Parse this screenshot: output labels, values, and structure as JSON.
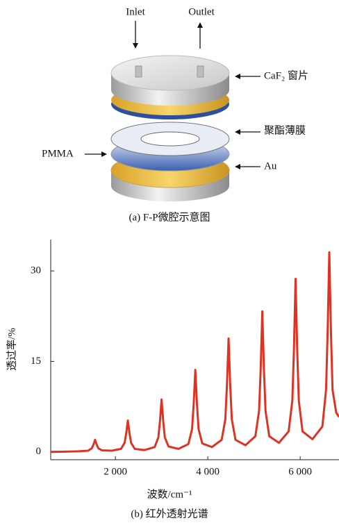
{
  "diagram": {
    "inlet": "Inlet",
    "outlet": "Outlet",
    "caf2_label": "CaF₂ 窗片",
    "film_label": "聚酯薄膜",
    "pmma_label": "PMMA",
    "au_label": "Au",
    "caption": "(a) F-P微腔示意图"
  },
  "chart_data": {
    "type": "line",
    "caption": "(b) 红外透射光谱",
    "x_label": "波数/cm⁻¹",
    "y_label": "透过率/%",
    "color": "#e03222",
    "xlim": [
      600,
      6840
    ],
    "ylim": [
      -1.3,
      35.2
    ],
    "xticks": [
      {
        "value": 2000,
        "label": "2 000"
      },
      {
        "value": 4000,
        "label": "4 000"
      },
      {
        "value": 6000,
        "label": "6 000"
      }
    ],
    "yticks": [
      0,
      15,
      30
    ],
    "x": [
      600,
      1000,
      1200,
      1410,
      1490,
      1525,
      1560,
      1595,
      1630,
      1710,
      1920,
      2120,
      2200,
      2235,
      2270,
      2305,
      2340,
      2420,
      2630,
      2850,
      2930,
      2965,
      3000,
      3035,
      3070,
      3150,
      3365,
      3580,
      3660,
      3695,
      3730,
      3765,
      3800,
      3880,
      4090,
      4300,
      4380,
      4415,
      4450,
      4485,
      4520,
      4600,
      4815,
      5030,
      5110,
      5145,
      5180,
      5215,
      5250,
      5330,
      5540,
      5750,
      5830,
      5865,
      5900,
      5935,
      5970,
      6050,
      6265,
      6480,
      6560,
      6595,
      6630,
      6665,
      6700,
      6780,
      6840
    ],
    "values": [
      0.0,
      0.05,
      0.1,
      0.2,
      0.6,
      1.2,
      2.0,
      1.2,
      0.6,
      0.25,
      0.2,
      0.5,
      1.5,
      3.1,
      5.2,
      3.1,
      1.5,
      0.5,
      0.3,
      0.8,
      2.4,
      5.1,
      8.7,
      5.1,
      2.4,
      0.9,
      0.5,
      1.3,
      3.8,
      8.0,
      13.6,
      8.0,
      3.8,
      1.4,
      0.8,
      2.0,
      5.4,
      11.1,
      18.8,
      11.1,
      5.4,
      2.0,
      1.1,
      2.6,
      6.8,
      13.8,
      23.3,
      13.8,
      6.8,
      2.6,
      1.5,
      3.4,
      8.5,
      17.0,
      28.7,
      17.0,
      8.5,
      3.4,
      2.1,
      4.2,
      10.3,
      20.2,
      33.1,
      20.2,
      10.3,
      6.5,
      5.8
    ]
  }
}
